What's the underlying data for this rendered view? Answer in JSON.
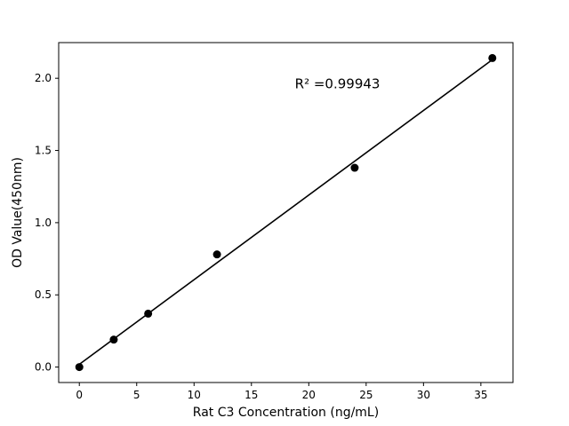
{
  "figure": {
    "background": "#ffffff"
  },
  "chart_data": {
    "type": "scatter",
    "title": "",
    "xlabel": "Rat C3 Concentration (ng/mL)",
    "ylabel": "OD Value(450nm)",
    "x": [
      0,
      3,
      6,
      12,
      24,
      36
    ],
    "y": [
      0.0,
      0.19,
      0.37,
      0.78,
      1.38,
      2.14
    ],
    "fit_line": {
      "slope": 0.0586,
      "intercept": 0.019,
      "x_start": 0,
      "x_end": 36
    },
    "annotation": {
      "text": "R² =0.99943",
      "x": 22.5,
      "y": 1.93
    },
    "xlim": [
      -1.8,
      37.8
    ],
    "ylim": [
      -0.107,
      2.247
    ],
    "xticks": [
      0,
      5,
      10,
      15,
      20,
      25,
      30,
      35
    ],
    "xtick_labels": [
      "0",
      "5",
      "10",
      "15",
      "20",
      "25",
      "30",
      "35"
    ],
    "yticks": [
      0.0,
      0.5,
      1.0,
      1.5,
      2.0
    ],
    "ytick_labels": [
      "0.0",
      "0.5",
      "1.0",
      "1.5",
      "2.0"
    ],
    "grid": false,
    "legend": null,
    "colors": {
      "marker": "#000000",
      "line": "#000000",
      "text": "#000000",
      "frame": "#000000"
    }
  }
}
